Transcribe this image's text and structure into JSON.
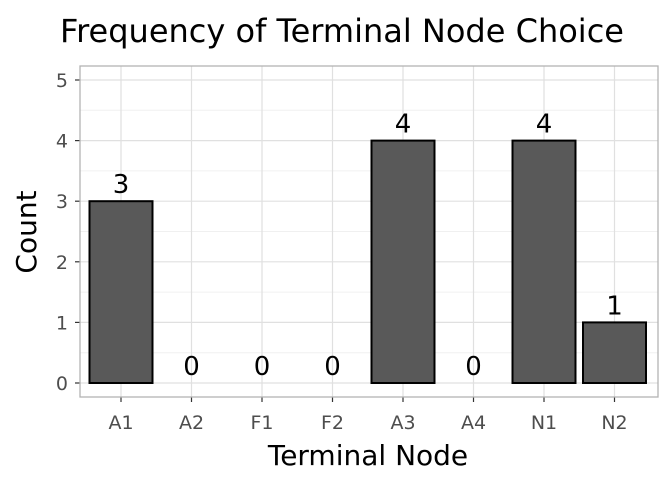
{
  "chart_data": {
    "type": "bar",
    "title": "Frequency of Terminal Node Choice",
    "xlabel": "Terminal Node",
    "ylabel": "Count",
    "categories": [
      "A1",
      "A2",
      "F1",
      "F2",
      "A3",
      "A4",
      "N1",
      "N2"
    ],
    "values": [
      3,
      0,
      0,
      0,
      4,
      0,
      4,
      1
    ],
    "data_labels": [
      "3",
      "0",
      "0",
      "0",
      "4",
      "0",
      "4",
      "1"
    ],
    "ylim": [
      0,
      5
    ],
    "yticks": [
      0,
      1,
      2,
      3,
      4,
      5
    ],
    "ytick_labels": [
      "0",
      "1",
      "2",
      "3",
      "4",
      "5"
    ],
    "grid": true,
    "legend": "none",
    "colors": {
      "bar_fill": "#595959",
      "bar_stroke": "#000000",
      "grid_major": "#e0e0e0",
      "grid_minor": "#f0f0f0",
      "panel_border": "#b3b3b3",
      "tick_text": "#4d4d4d"
    }
  }
}
